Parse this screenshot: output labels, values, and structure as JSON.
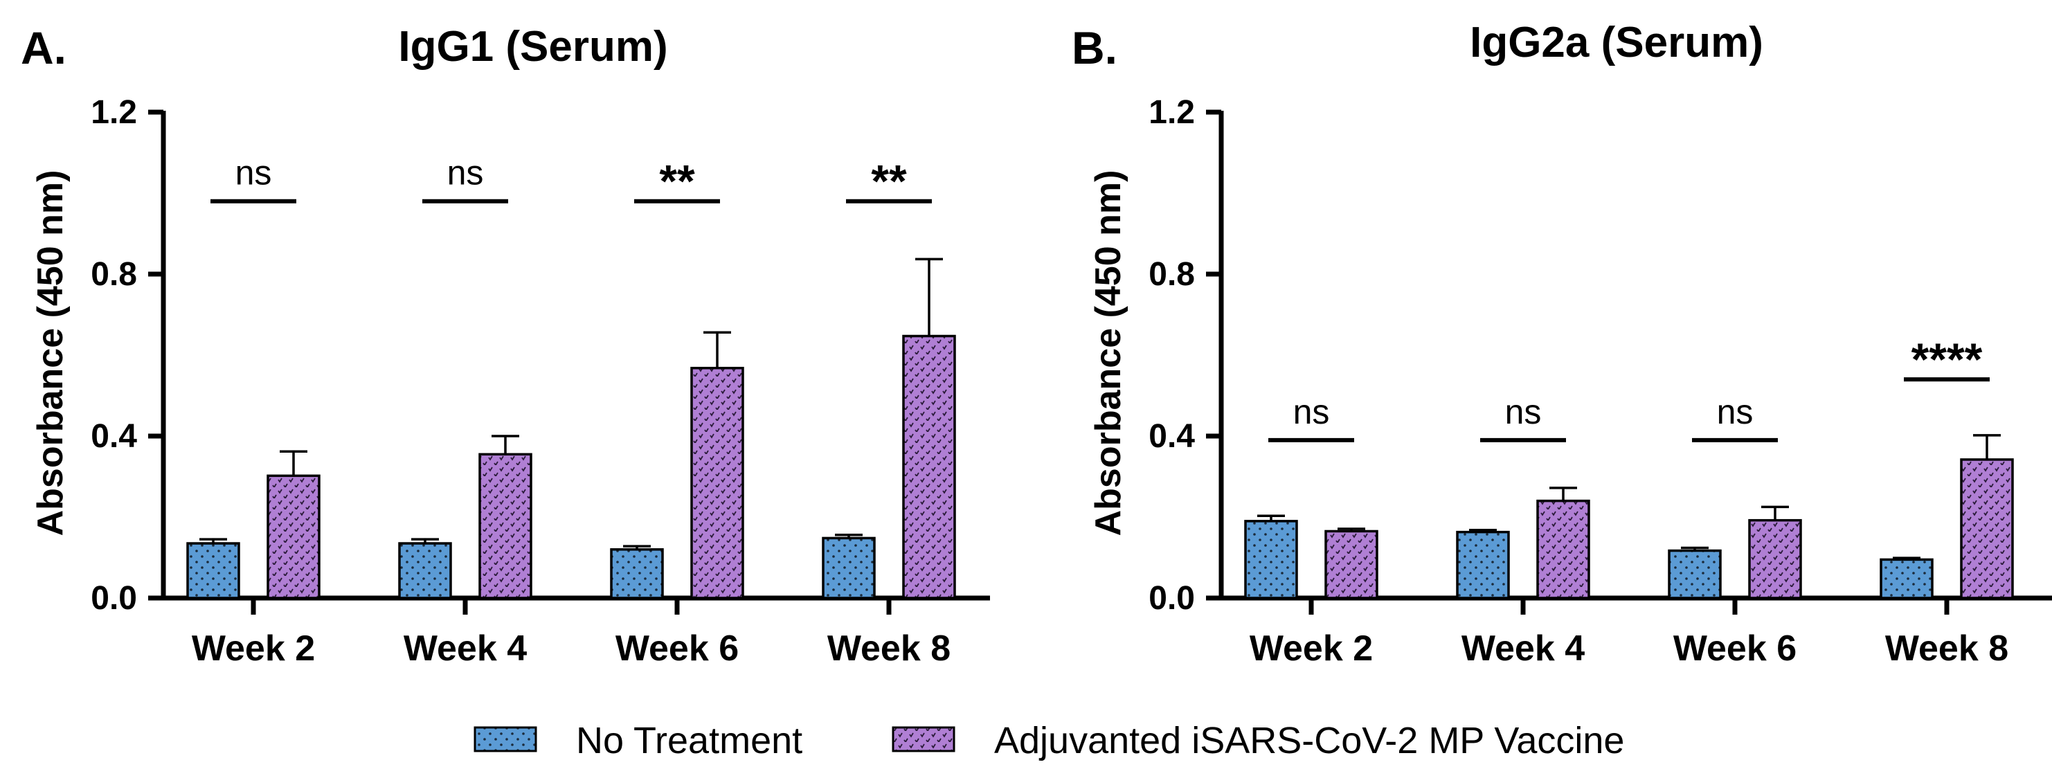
{
  "colors": {
    "no_treatment": "#5b9bd5",
    "vaccine": "#b07fd4",
    "axis": "#000000"
  },
  "legend": {
    "items": [
      {
        "label": "No Treatment",
        "series": "no_treatment"
      },
      {
        "label": "Adjuvanted iSARS-CoV-2 MP Vaccine",
        "series": "vaccine"
      }
    ]
  },
  "chart_data": [
    {
      "type": "bar",
      "panel": "A.",
      "title": "IgG1 (Serum)",
      "xlabel": "",
      "ylabel": "Absorbance (450 nm)",
      "ylim": [
        0,
        1.2
      ],
      "yticks": [
        "0.0",
        "0.4",
        "0.8",
        "1.2"
      ],
      "categories": [
        "Week 2",
        "Week 4",
        "Week 6",
        "Week 8"
      ],
      "series": [
        {
          "name": "No Treatment",
          "key": "no_treatment",
          "values": [
            0.135,
            0.135,
            0.12,
            0.148
          ],
          "errors": [
            0.01,
            0.01,
            0.008,
            0.008
          ]
        },
        {
          "name": "Adjuvanted iSARS-CoV-2 MP Vaccine",
          "key": "vaccine",
          "values": [
            0.302,
            0.355,
            0.568,
            0.647
          ],
          "errors": [
            0.06,
            0.045,
            0.088,
            0.19
          ]
        }
      ],
      "significance": [
        "ns",
        "ns",
        "**",
        "**"
      ],
      "sig_heights": [
        0.98,
        0.98,
        0.98,
        0.98
      ]
    },
    {
      "type": "bar",
      "panel": "B.",
      "title": "IgG2a (Serum)",
      "xlabel": "",
      "ylabel": "Absorbance (450 nm)",
      "ylim": [
        0,
        1.2
      ],
      "yticks": [
        "0.0",
        "0.4",
        "0.8",
        "1.2"
      ],
      "categories": [
        "Week 2",
        "Week 4",
        "Week 6",
        "Week 8"
      ],
      "series": [
        {
          "name": "No Treatment",
          "key": "no_treatment",
          "values": [
            0.19,
            0.163,
            0.117,
            0.095
          ],
          "errors": [
            0.013,
            0.005,
            0.007,
            0.004
          ]
        },
        {
          "name": "Adjuvanted iSARS-CoV-2 MP Vaccine",
          "key": "vaccine",
          "values": [
            0.165,
            0.24,
            0.192,
            0.342
          ],
          "errors": [
            0.006,
            0.032,
            0.033,
            0.06
          ]
        }
      ],
      "significance": [
        "ns",
        "ns",
        "ns",
        "****"
      ],
      "sig_heights": [
        0.39,
        0.39,
        0.39,
        0.54
      ]
    }
  ]
}
